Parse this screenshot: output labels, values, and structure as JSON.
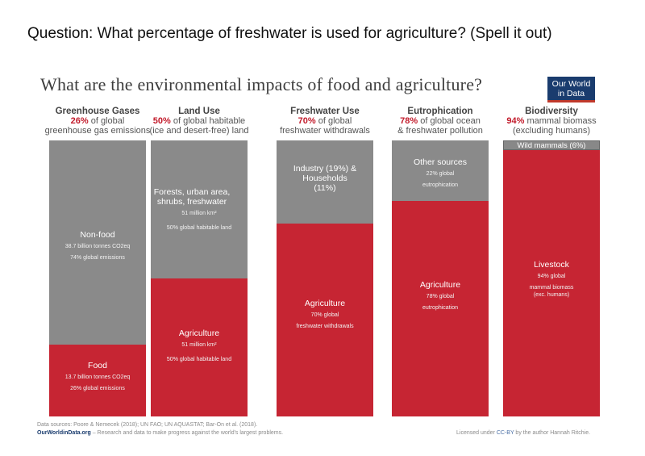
{
  "question": "Question: What percentage of freshwater is used for agriculture? (Spell it out)",
  "logo": {
    "line1": "Our World",
    "line2": "in Data"
  },
  "chart_data": {
    "type": "bar",
    "title": "What are the environmental impacts of food and agriculture?",
    "colors": {
      "agriculture": "#c62533",
      "other": "#8a8a8a"
    },
    "columns": [
      {
        "name": "Greenhouse Gases",
        "pct": "26%",
        "desc1": " of global",
        "desc2": "greenhouse gas emissions",
        "segments": [
          {
            "kind": "other",
            "value": 74,
            "label": "Non-food",
            "sub1": "38.7 billion tonnes CO2eq",
            "sub2": "74% global emissions"
          },
          {
            "kind": "agriculture",
            "value": 26,
            "label": "Food",
            "sub1": "13.7 billion tonnes CO2eq",
            "sub2": "26% global emissions"
          }
        ]
      },
      {
        "name": "Land Use",
        "pct": "50%",
        "desc1": " of global habitable",
        "desc2": "(ice and desert-free) land",
        "segments": [
          {
            "kind": "other",
            "value": 50,
            "label": "Forests, urban area, shrubs, freshwater",
            "sub1": "51 million km²",
            "sub2": "50% global habitable land"
          },
          {
            "kind": "agriculture",
            "value": 50,
            "label": "Agriculture",
            "sub1": "51 million km²",
            "sub2": "50% global habitable land"
          }
        ]
      },
      {
        "name": "Freshwater Use",
        "pct": "70%",
        "desc1": " of global",
        "desc2": "freshwater withdrawals",
        "segments": [
          {
            "kind": "other",
            "value": 30,
            "label": "Industry (19%) & Households (11%)",
            "sub1": "",
            "sub2": ""
          },
          {
            "kind": "agriculture",
            "value": 70,
            "label": "Agriculture",
            "sub1": "70% global",
            "sub2": "freshwater withdrawals"
          }
        ]
      },
      {
        "name": "Eutrophication",
        "pct": "78%",
        "desc1": " of global ocean",
        "desc2": "& freshwater pollution",
        "segments": [
          {
            "kind": "other",
            "value": 22,
            "label": "Other sources",
            "sub1": "22% global",
            "sub2": "eutrophication"
          },
          {
            "kind": "agriculture",
            "value": 78,
            "label": "Agriculture",
            "sub1": "78% global",
            "sub2": "eutrophication"
          }
        ]
      },
      {
        "name": "Biodiversity",
        "pct": "94%",
        "desc1": " mammal biomass",
        "desc2": "(excluding humans)",
        "segments": [
          {
            "kind": "other",
            "value": 6,
            "label": "Wild mammals (6%)",
            "sub1": "",
            "sub2": ""
          },
          {
            "kind": "agriculture",
            "value": 94,
            "label": "Livestock",
            "sub1": "94% global",
            "sub2": "mammal biomass (exc. humans)"
          }
        ]
      }
    ]
  },
  "footer": {
    "sources": "Data sources: Poore & Nemecek (2018); UN FAO; UN AQUASTAT; Bar-On et al. (2018).",
    "owid": "OurWorldinData.org",
    "tagline": " – Research and data to make progress against the world's largest problems.",
    "license_prefix": "Licensed under ",
    "license": "CC-BY",
    "license_suffix": " by the author Hannah Ritchie."
  }
}
